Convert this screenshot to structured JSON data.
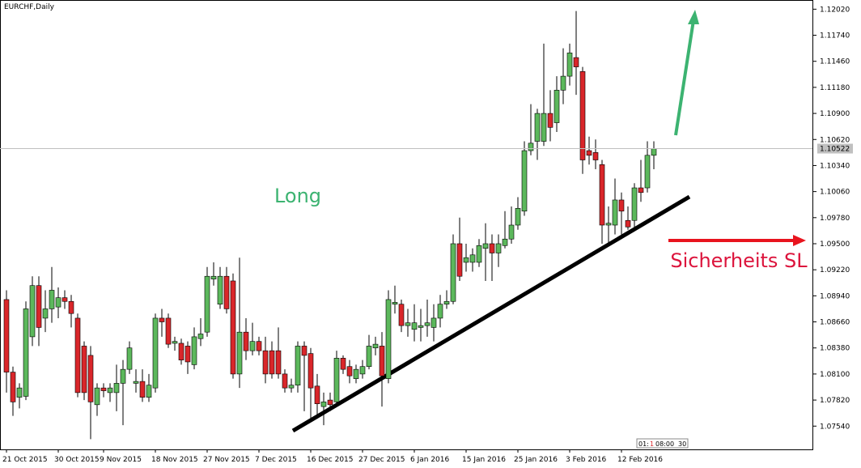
{
  "chart_data": {
    "type": "candlestick",
    "title": "EURCHF,Daily",
    "categories": [
      "21 Oct 2015",
      null,
      null,
      null,
      null,
      null,
      null,
      null,
      "30 Oct 2015",
      null,
      null,
      null,
      null,
      null,
      null,
      "9 Nov 2015",
      null,
      null,
      null,
      null,
      null,
      null,
      null,
      "18 Nov 2015",
      null,
      null,
      null,
      null,
      null,
      null,
      null,
      "27 Nov 2015",
      null,
      null,
      null,
      null,
      null,
      null,
      null,
      "7 Dec 2015",
      null,
      null,
      null,
      null,
      null,
      null,
      null,
      "16 Dec 2015",
      null,
      null,
      null,
      null,
      null,
      null,
      null,
      "27 Dec 2015",
      null,
      null,
      null,
      null,
      null,
      null,
      null,
      "6 Jan 2016",
      null,
      null,
      null,
      null,
      null,
      null,
      null,
      "15 Jan 2016",
      null,
      null,
      null,
      null,
      null,
      null,
      null,
      "25 Jan 2016",
      null,
      null,
      null,
      null,
      null,
      null,
      null,
      "3 Feb 2016",
      null,
      null,
      null,
      null,
      null,
      null,
      null,
      "12 Feb 2016",
      null,
      null,
      null,
      null,
      null
    ],
    "open": [
      1.089,
      1.0812,
      1.0785,
      1.0786,
      1.085,
      1.0905,
      1.087,
      1.088,
      1.0882,
      1.0892,
      1.0888,
      1.087,
      1.084,
      1.083,
      1.0777,
      1.0795,
      1.079,
      1.079,
      1.08,
      1.0815,
      1.08,
      1.0802,
      1.0785,
      1.0795,
      1.087,
      1.087,
      1.0843,
      1.0843,
      1.084,
      1.082,
      1.0848,
      1.0855,
      1.0912,
      1.0885,
      1.0915,
      1.091,
      1.081,
      1.0855,
      1.0835,
      1.0845,
      1.0835,
      1.0835,
      1.0835,
      1.081,
      1.0795,
      1.0798,
      1.084,
      1.0832,
      1.0797,
      1.0775,
      1.0782,
      1.078,
      1.0827,
      1.0818,
      1.0805,
      1.081,
      1.0818,
      1.0838,
      1.084,
      1.0805,
      1.0885,
      1.0885,
      1.0862,
      1.0858,
      1.086,
      1.0862,
      1.086,
      1.087,
      1.0885,
      1.0888,
      1.095,
      1.093,
      1.093,
      1.093,
      1.0945,
      1.095,
      1.094,
      1.0948,
      1.0955,
      1.097,
      1.0985,
      1.105,
      1.106,
      1.106,
      1.109,
      1.108,
      1.1115,
      1.113,
      1.115,
      1.1135,
      1.105,
      1.1048,
      1.1035,
      1.097,
      1.097,
      1.0997,
      1.0975,
      1.0975,
      1.101,
      1.101,
      1.1045
    ],
    "high": [
      1.09,
      1.0818,
      1.08,
      1.0888,
      1.0915,
      1.0915,
      1.09,
      1.0925,
      1.0903,
      1.09,
      1.0895,
      1.0875,
      1.0845,
      1.084,
      1.08,
      1.08,
      1.08,
      1.082,
      1.0825,
      1.0845,
      1.0815,
      1.0815,
      1.081,
      1.0875,
      1.088,
      1.0875,
      1.085,
      1.0848,
      1.0845,
      1.086,
      1.087,
      1.0925,
      1.093,
      1.0925,
      1.0925,
      1.0918,
      1.0935,
      1.087,
      1.0865,
      1.085,
      1.085,
      1.0845,
      1.086,
      1.0815,
      1.0805,
      1.0845,
      1.0845,
      1.0838,
      1.081,
      1.079,
      1.079,
      1.0835,
      1.083,
      1.0825,
      1.082,
      1.0825,
      1.0852,
      1.085,
      1.0855,
      1.09,
      1.0905,
      1.089,
      1.088,
      1.0885,
      1.088,
      1.089,
      1.0885,
      1.0895,
      1.09,
      1.096,
      1.0978,
      1.095,
      1.0945,
      1.0955,
      1.0972,
      1.096,
      1.096,
      1.0985,
      1.099,
      1.1,
      1.106,
      1.11,
      1.1095,
      1.1165,
      1.1115,
      1.113,
      1.116,
      1.1165,
      1.12,
      1.114,
      1.1065,
      1.1062,
      1.104,
      1.099,
      1.102,
      1.1005,
      1.099,
      1.1015,
      1.104,
      1.106,
      1.106
    ],
    "low": [
      1.079,
      1.0765,
      1.0773,
      1.0782,
      1.084,
      1.084,
      1.0855,
      1.0865,
      1.087,
      1.088,
      1.086,
      1.0785,
      1.0782,
      1.074,
      1.0765,
      1.0785,
      1.078,
      1.077,
      1.0755,
      1.081,
      1.079,
      1.078,
      1.078,
      1.079,
      1.085,
      1.0838,
      1.0835,
      1.082,
      1.081,
      1.0815,
      1.084,
      1.085,
      1.0905,
      1.088,
      1.0875,
      1.0805,
      1.0795,
      1.0825,
      1.083,
      1.083,
      1.08,
      1.0805,
      1.0805,
      1.079,
      1.079,
      1.079,
      1.077,
      1.076,
      1.0762,
      1.0755,
      1.077,
      1.0778,
      1.081,
      1.08,
      1.08,
      1.0805,
      1.0815,
      1.083,
      1.0775,
      1.08,
      1.0875,
      1.0855,
      1.085,
      1.0845,
      1.0845,
      1.085,
      1.0845,
      1.086,
      1.088,
      1.0885,
      1.091,
      1.092,
      1.092,
      1.0925,
      1.091,
      1.091,
      1.0925,
      1.0945,
      1.095,
      1.0965,
      1.098,
      1.1045,
      1.104,
      1.1055,
      1.106,
      1.107,
      1.11,
      1.112,
      1.111,
      1.1025,
      1.1035,
      1.103,
      1.095,
      1.095,
      1.096,
      1.096,
      1.0965,
      1.0965,
      1.0995,
      1.1005,
      1.103
    ],
    "close": [
      1.0812,
      1.078,
      1.0795,
      1.088,
      1.0905,
      1.086,
      1.088,
      1.09,
      1.0892,
      1.0888,
      1.0875,
      1.079,
      1.079,
      1.078,
      1.0795,
      1.0792,
      1.0795,
      1.08,
      1.0815,
      1.0838,
      1.0802,
      1.0785,
      1.0798,
      1.087,
      1.0866,
      1.0842,
      1.0845,
      1.0825,
      1.0823,
      1.085,
      1.0853,
      1.0915,
      1.0915,
      1.0915,
      1.088,
      1.081,
      1.0855,
      1.0835,
      1.0845,
      1.0835,
      1.081,
      1.081,
      1.081,
      1.0795,
      1.0798,
      1.084,
      1.083,
      1.0795,
      1.0778,
      1.078,
      1.0777,
      1.0827,
      1.0815,
      1.0808,
      1.0815,
      1.0818,
      1.084,
      1.0842,
      1.0808,
      1.089,
      1.0887,
      1.0862,
      1.0865,
      1.0865,
      1.0862,
      1.0865,
      1.087,
      1.0885,
      1.0888,
      1.095,
      1.0915,
      1.0935,
      1.0938,
      1.0948,
      1.095,
      1.094,
      1.095,
      1.0955,
      1.097,
      1.0988,
      1.105,
      1.1058,
      1.109,
      1.109,
      1.1075,
      1.1115,
      1.113,
      1.1155,
      1.114,
      1.104,
      1.1045,
      1.104,
      1.097,
      1.0972,
      1.0997,
      1.0985,
      1.0968,
      1.101,
      1.1005,
      1.1045,
      1.1052
    ],
    "up_color": "#5cb85c",
    "down_color": "#d9262a",
    "ylim": [
      1.0729,
      1.1211
    ],
    "yticks": [
      {
        "value": 1.0754,
        "label": "1.07540"
      },
      {
        "value": 1.0782,
        "label": "1.07820"
      },
      {
        "value": 1.081,
        "label": "1.08100"
      },
      {
        "value": 1.0838,
        "label": "1.08380"
      },
      {
        "value": 1.0866,
        "label": "1.08660"
      },
      {
        "value": 1.0894,
        "label": "1.08940"
      },
      {
        "value": 1.0922,
        "label": "1.09220"
      },
      {
        "value": 1.095,
        "label": "1.09500"
      },
      {
        "value": 1.0978,
        "label": "1.09780"
      },
      {
        "value": 1.1006,
        "label": "1.10060"
      },
      {
        "value": 1.1034,
        "label": "1.10340"
      },
      {
        "value": 1.1062,
        "label": "1.10620"
      },
      {
        "value": 1.109,
        "label": "1.10900"
      },
      {
        "value": 1.1118,
        "label": "1.11180"
      },
      {
        "value": 1.1146,
        "label": "1.11460"
      },
      {
        "value": 1.1174,
        "label": "1.11740"
      },
      {
        "value": 1.1202,
        "label": "1.12020"
      }
    ],
    "current_price": 1.10522,
    "annotations": [
      "Long",
      "Sicherheits SL"
    ],
    "timer": [
      "01:",
      "1",
      "08:00",
      "30"
    ]
  }
}
